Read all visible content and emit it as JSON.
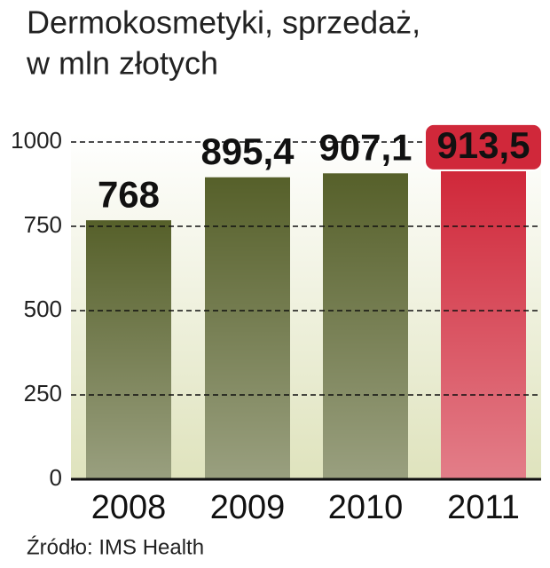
{
  "chart_data": {
    "type": "bar",
    "title": [
      "Dermokosmetyki, sprzedaż,",
      "w mln złotych"
    ],
    "categories": [
      "2008",
      "2009",
      "2010",
      "2011"
    ],
    "values": [
      768,
      895.4,
      907.1,
      913.5
    ],
    "value_labels": [
      "768",
      "895,4",
      "907,1",
      "913,5"
    ],
    "colors": [
      "#56602a",
      "#56602a",
      "#56602a",
      "#d0283a"
    ],
    "ylim": [
      0,
      1000
    ],
    "yticks": [
      0,
      250,
      500,
      750,
      1000
    ],
    "grid": true,
    "source": "Źródło: IMS Health"
  }
}
